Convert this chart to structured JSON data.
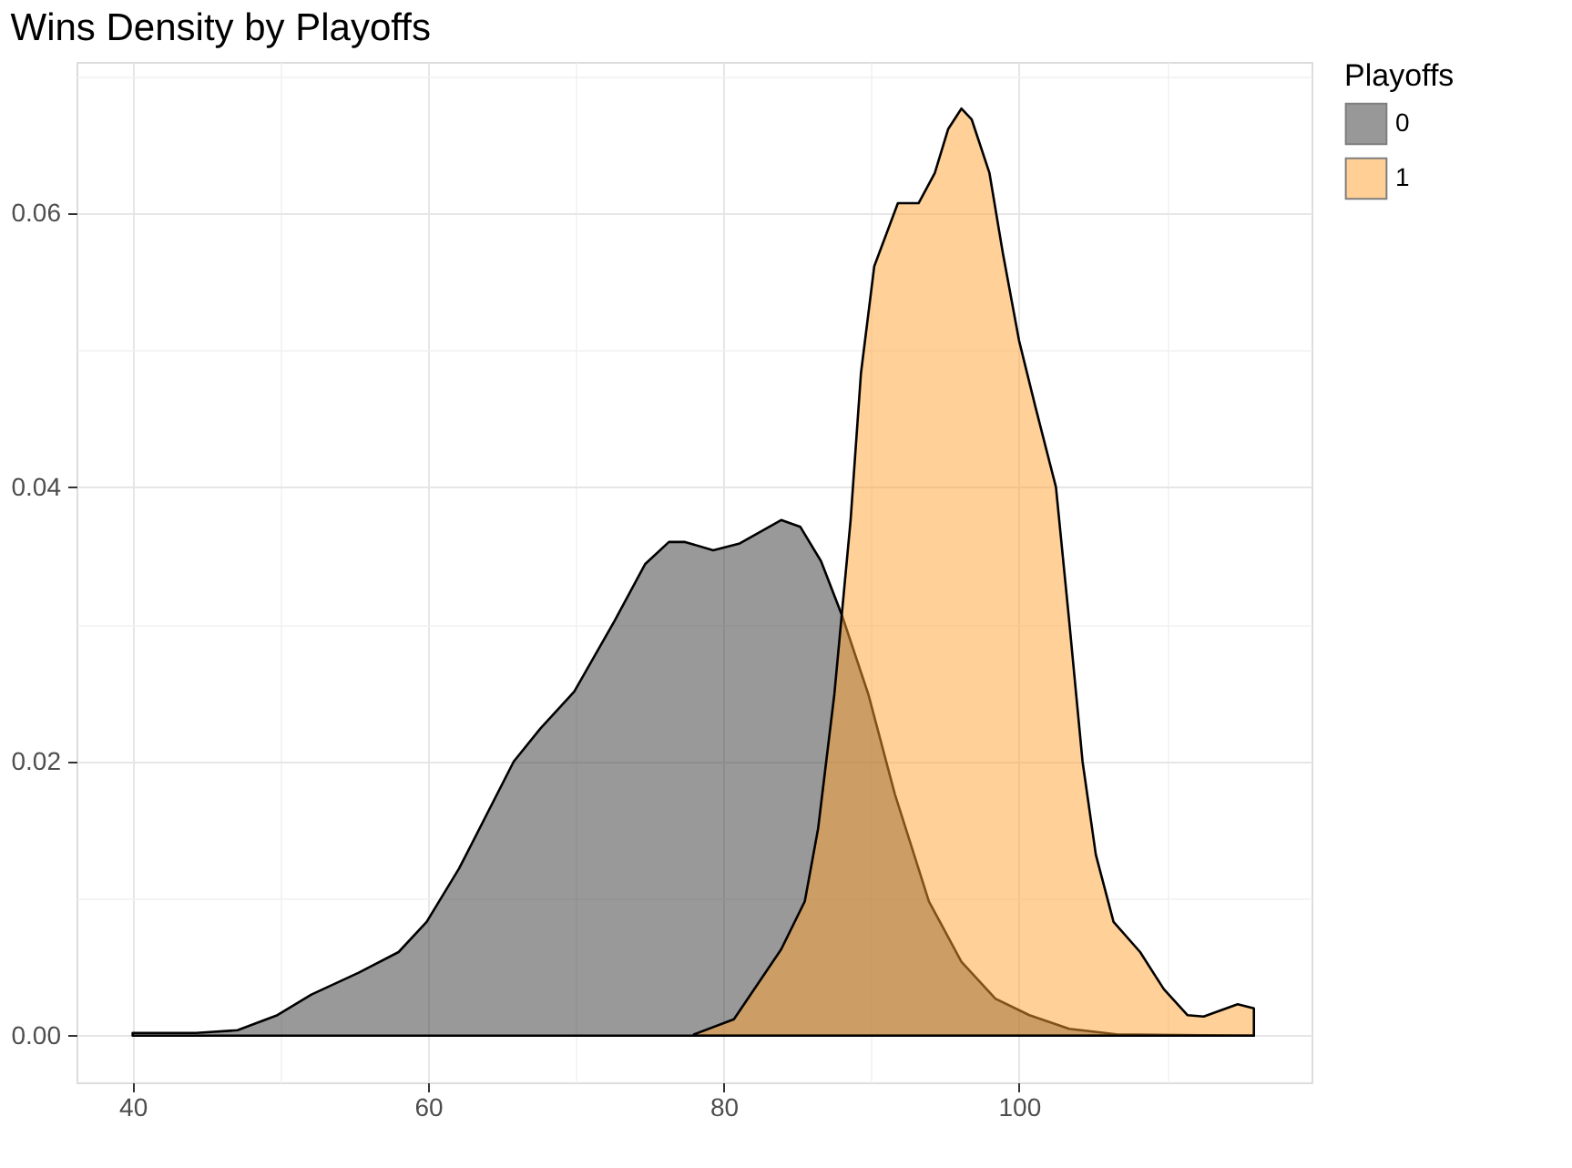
{
  "chart_data": {
    "type": "area",
    "title": "Wins Density by Playoffs",
    "legend_title": "Playoffs",
    "legend": "right",
    "grid": true,
    "xlim": [
      36.2,
      119.8
    ],
    "xticks": [
      40,
      60,
      80,
      100
    ],
    "ylim": [
      -0.0034,
      0.071
    ],
    "yticks": [
      {
        "value": 0,
        "label": "0.00"
      },
      {
        "value": 0.02,
        "label": "0.02"
      },
      {
        "value": 0.04,
        "label": "0.04"
      },
      {
        "value": 0.06,
        "label": "0.06"
      }
    ],
    "series": [
      {
        "name": "0",
        "color": "#333333",
        "x": [
          40,
          44.3,
          47.1,
          49.8,
          52.1,
          55.3,
          58.0,
          59.9,
          62.1,
          65.8,
          67.6,
          69.9,
          72.6,
          74.7,
          76.3,
          77.4,
          79.3,
          81.1,
          83.9,
          85.2,
          86.6,
          88.0,
          89.8,
          91.6,
          93.9,
          96.1,
          98.4,
          100.7,
          103.4,
          106.6,
          115.9
        ],
        "values": [
          0.0002,
          0.0002,
          0.0004,
          0.0015,
          0.003,
          0.0046,
          0.0061,
          0.0083,
          0.0122,
          0.02,
          0.0224,
          0.0251,
          0.0302,
          0.0344,
          0.036,
          0.036,
          0.0354,
          0.0359,
          0.0376,
          0.0371,
          0.0346,
          0.0307,
          0.0249,
          0.0176,
          0.0098,
          0.0054,
          0.0027,
          0.0015,
          0.0005,
          0.0001,
          0
        ]
      },
      {
        "name": "1",
        "color": "#ffa12f",
        "x": [
          78.0,
          80.7,
          83.9,
          85.5,
          86.4,
          87.5,
          88.6,
          89.3,
          90.2,
          91.8,
          93.2,
          94.3,
          95.2,
          96.1,
          96.8,
          98.0,
          98.9,
          100.0,
          101.1,
          102.5,
          103.4,
          104.3,
          105.2,
          106.4,
          108.2,
          109.8,
          111.4,
          112.5,
          114.8,
          115.9
        ],
        "values": [
          0.0001,
          0.0012,
          0.0063,
          0.0098,
          0.0151,
          0.0249,
          0.0376,
          0.0483,
          0.0561,
          0.0607,
          0.0607,
          0.0629,
          0.0661,
          0.0676,
          0.0668,
          0.0629,
          0.0571,
          0.0507,
          0.0459,
          0.04,
          0.0302,
          0.02,
          0.0132,
          0.0083,
          0.0061,
          0.0034,
          0.0015,
          0.0014,
          0.0023,
          0.002
        ]
      }
    ]
  }
}
